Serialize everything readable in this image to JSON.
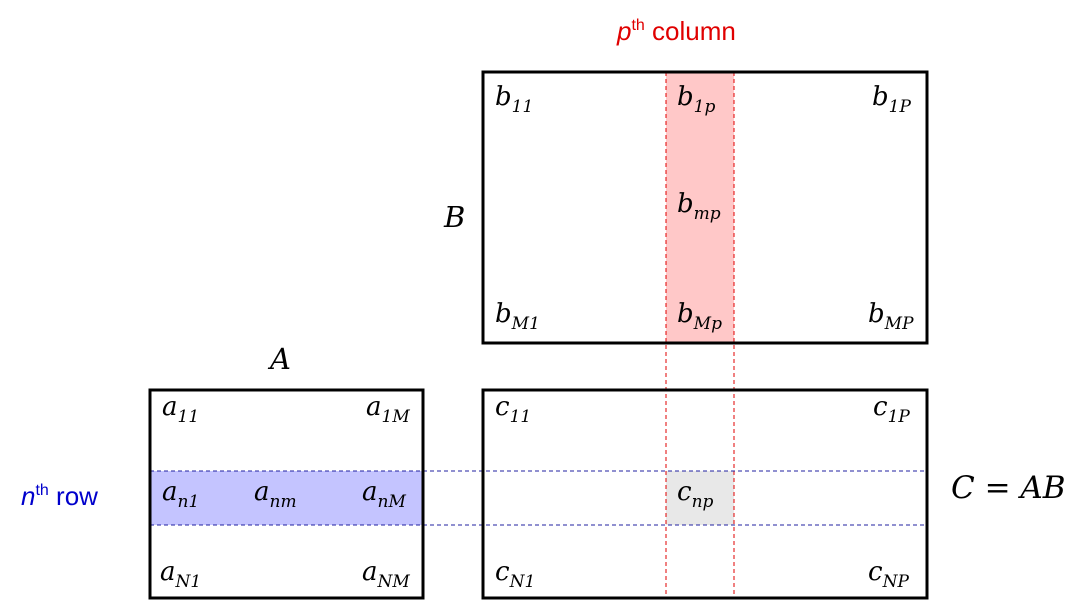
{
  "column_label": {
    "sup_var": "p",
    "sup": "th",
    "text": " column",
    "color": "#e00000"
  },
  "row_label": {
    "sup_var": "n",
    "sup": "th",
    "text": " row",
    "color": "#0000cc"
  },
  "matrix_B": {
    "name": "B",
    "e11": {
      "base": "b",
      "sub": "11"
    },
    "e1p": {
      "base": "b",
      "sub": "1p"
    },
    "e1P": {
      "base": "b",
      "sub": "1P"
    },
    "emp": {
      "base": "b",
      "sub": "mp"
    },
    "eM1": {
      "base": "b",
      "sub": "M1"
    },
    "eMp": {
      "base": "b",
      "sub": "Mp"
    },
    "eMP": {
      "base": "b",
      "sub": "MP"
    }
  },
  "matrix_A": {
    "name": "A",
    "e11": {
      "base": "a",
      "sub": "11"
    },
    "e1M": {
      "base": "a",
      "sub": "1M"
    },
    "en1": {
      "base": "a",
      "sub": "n1"
    },
    "enm": {
      "base": "a",
      "sub": "nm"
    },
    "enM": {
      "base": "a",
      "sub": "nM"
    },
    "eN1": {
      "base": "a",
      "sub": "N1"
    },
    "eNM": {
      "base": "a",
      "sub": "NM"
    }
  },
  "matrix_C": {
    "e11": {
      "base": "c",
      "sub": "11"
    },
    "e1P": {
      "base": "c",
      "sub": "1P"
    },
    "enp": {
      "base": "c",
      "sub": "np"
    },
    "eN1": {
      "base": "c",
      "sub": "N1"
    },
    "eNP": {
      "base": "c",
      "sub": "NP"
    }
  },
  "equation": "C = AB",
  "colors": {
    "column_highlight": "#ffc8c8",
    "row_highlight": "#c4c4ff",
    "cell_highlight": "#e8e8e8",
    "column_guide": "#e00000",
    "row_guide": "#2020a0"
  }
}
